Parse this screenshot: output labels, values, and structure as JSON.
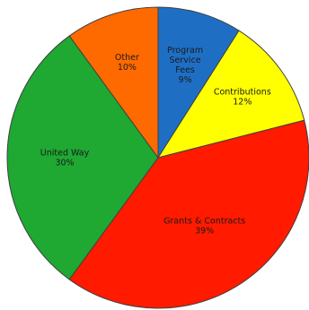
{
  "chart_data": {
    "type": "pie",
    "title": "",
    "start_angle_deg": 0,
    "direction": "clockwise",
    "slices": [
      {
        "label_lines": [
          "Program",
          "Service",
          "Fees"
        ],
        "percent_label": "9%",
        "value": 9,
        "color": "#1e6fc4"
      },
      {
        "label_lines": [
          "Contributions"
        ],
        "percent_label": "12%",
        "value": 12,
        "color": "#ffff00"
      },
      {
        "label_lines": [
          "Grants & Contracts"
        ],
        "percent_label": "39%",
        "value": 39,
        "color": "#ff1a00"
      },
      {
        "label_lines": [
          "United Way"
        ],
        "percent_label": "30%",
        "value": 30,
        "color": "#1fa832"
      },
      {
        "label_lines": [
          "Other"
        ],
        "percent_label": "10%",
        "value": 10,
        "color": "#ff6a00"
      }
    ]
  }
}
